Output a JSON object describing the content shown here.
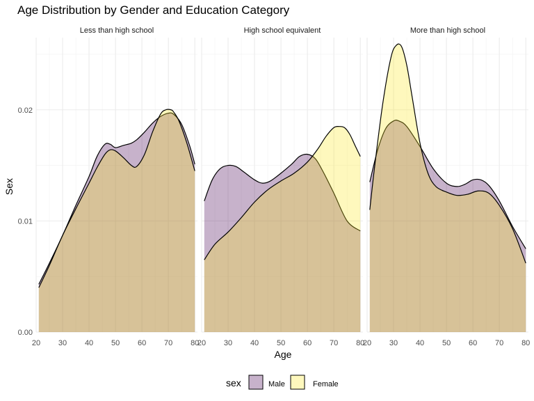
{
  "chart_data": {
    "type": "area",
    "title": "Age Distribution by Gender and Education Category",
    "xlabel": "Age",
    "ylabel": "Sex",
    "xlim": [
      20,
      81
    ],
    "ylim": [
      0,
      0.0265
    ],
    "x_ticks": [
      20,
      30,
      40,
      50,
      60,
      70,
      80
    ],
    "y_ticks": [
      0,
      0.01,
      0.02
    ],
    "y_tick_labels": [
      "0.00",
      "0.01",
      "0.02"
    ],
    "legend": {
      "title": "sex",
      "position": "bottom",
      "entries": [
        {
          "label": "Male",
          "color": "#440154"
        },
        {
          "label": "Female",
          "color": "#FDE725"
        }
      ]
    },
    "fill_opacity": 0.3,
    "grid": true,
    "panels": [
      {
        "label": "Less than high school",
        "series": [
          {
            "name": "Male",
            "x": [
              21,
              25,
              30,
              35,
              40,
              43,
              46,
              48,
              50,
              53,
              56,
              58,
              61,
              64,
              67,
              70,
              72,
              75,
              78,
              80
            ],
            "y": [
              0.0043,
              0.0062,
              0.0087,
              0.0114,
              0.014,
              0.0158,
              0.0169,
              0.0169,
              0.0166,
              0.0168,
              0.017,
              0.0173,
              0.018,
              0.0188,
              0.0194,
              0.0197,
              0.0196,
              0.0187,
              0.0168,
              0.0151
            ]
          },
          {
            "name": "Female",
            "x": [
              21,
              25,
              30,
              35,
              40,
              43,
              46,
              48,
              50,
              53,
              56,
              58,
              61,
              64,
              67,
              69,
              71,
              72,
              74,
              77,
              80
            ],
            "y": [
              0.004,
              0.006,
              0.0087,
              0.0111,
              0.0134,
              0.0148,
              0.016,
              0.0164,
              0.0163,
              0.0157,
              0.015,
              0.0149,
              0.016,
              0.018,
              0.0196,
              0.02,
              0.02,
              0.0198,
              0.019,
              0.017,
              0.0145
            ]
          }
        ]
      },
      {
        "label": "High school equivalent",
        "series": [
          {
            "name": "Male",
            "x": [
              21,
              24,
              27,
              30,
              33,
              36,
              40,
              43,
              46,
              50,
              54,
              57,
              60,
              63,
              66,
              70,
              75,
              80
            ],
            "y": [
              0.0118,
              0.0137,
              0.0147,
              0.015,
              0.0149,
              0.0144,
              0.0137,
              0.0134,
              0.0136,
              0.0143,
              0.0151,
              0.0158,
              0.016,
              0.0156,
              0.0144,
              0.0125,
              0.01,
              0.0091
            ]
          },
          {
            "name": "Female",
            "x": [
              21,
              25,
              30,
              35,
              40,
              45,
              50,
              55,
              60,
              64,
              67,
              70,
              72,
              74,
              76,
              78,
              80
            ],
            "y": [
              0.0065,
              0.0079,
              0.009,
              0.0103,
              0.0117,
              0.0128,
              0.0136,
              0.0143,
              0.0153,
              0.0165,
              0.0176,
              0.0184,
              0.0185,
              0.0184,
              0.0178,
              0.0168,
              0.0158
            ]
          }
        ]
      },
      {
        "label": "More than high school",
        "series": [
          {
            "name": "Male",
            "x": [
              21,
              24,
              27,
              30,
              32,
              35,
              40,
              45,
              50,
              54,
              57,
              60,
              63,
              66,
              70,
              75,
              80
            ],
            "y": [
              0.0135,
              0.0164,
              0.0183,
              0.019,
              0.019,
              0.0185,
              0.0167,
              0.0147,
              0.0134,
              0.0131,
              0.0133,
              0.0137,
              0.0137,
              0.0132,
              0.0118,
              0.0095,
              0.0075
            ]
          },
          {
            "name": "Female",
            "x": [
              21,
              23,
              26,
              29,
              31,
              33,
              35,
              37,
              40,
              43,
              46,
              50,
              54,
              58,
              62,
              66,
              70,
              75,
              80
            ],
            "y": [
              0.011,
              0.0152,
              0.0207,
              0.0247,
              0.0258,
              0.0257,
              0.024,
              0.0212,
              0.017,
              0.0143,
              0.0131,
              0.0126,
              0.0123,
              0.0124,
              0.0127,
              0.0125,
              0.0114,
              0.0093,
              0.0062
            ]
          }
        ]
      }
    ]
  }
}
